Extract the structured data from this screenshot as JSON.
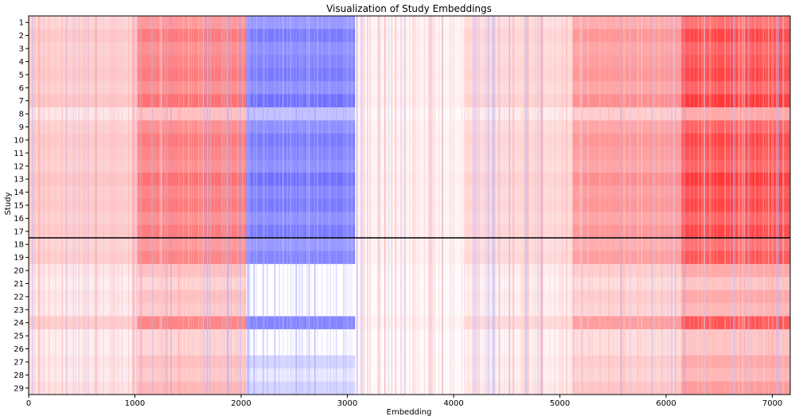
{
  "chart_data": {
    "type": "heatmap",
    "title": "Visualization of Study Embeddings",
    "xlabel": "Embedding",
    "ylabel": "Study",
    "xlim": [
      0,
      7168
    ],
    "x_ticks": [
      0,
      1000,
      2000,
      3000,
      4000,
      5000,
      6000,
      7000
    ],
    "y_categories": [
      "1",
      "2",
      "3",
      "4",
      "5",
      "6",
      "7",
      "8",
      "9",
      "10",
      "11",
      "12",
      "13",
      "14",
      "15",
      "16",
      "17",
      "18",
      "19",
      "20",
      "21",
      "22",
      "23",
      "24",
      "25",
      "26",
      "27",
      "28",
      "29"
    ],
    "separator_after_row": 17,
    "colormap": "bwr",
    "colors": {
      "positive": "#ff0000",
      "negative": "#0000ff",
      "zero": "#ffffff",
      "separator": "#000000"
    },
    "column_blocks": [
      {
        "start": 0,
        "end": 1024,
        "mean_value": 0.04
      },
      {
        "start": 1024,
        "end": 2048,
        "mean_value": 0.1
      },
      {
        "start": 2048,
        "end": 3072,
        "mean_value": -0.1
      },
      {
        "start": 3072,
        "end": 4096,
        "mean_value": 0.01
      },
      {
        "start": 4096,
        "end": 5120,
        "mean_value": 0.03
      },
      {
        "start": 5120,
        "end": 6144,
        "mean_value": 0.08
      },
      {
        "start": 6144,
        "end": 7168,
        "mean_value": 0.14
      }
    ],
    "row_intensity": [
      1.0,
      1.3,
      1.1,
      1.2,
      1.3,
      1.1,
      1.4,
      0.6,
      1.1,
      1.3,
      1.2,
      1.1,
      1.4,
      1.2,
      1.3,
      1.1,
      1.3,
      1.0,
      1.2,
      0.6,
      0.4,
      0.6,
      0.5,
      1.2,
      0.4,
      0.4,
      0.6,
      0.5,
      0.7
    ],
    "row_block_overrides": [
      {
        "row": 20,
        "block": 2,
        "mean_value": 0.0
      },
      {
        "row": 21,
        "block": 2,
        "mean_value": 0.0
      },
      {
        "row": 22,
        "block": 2,
        "mean_value": 0.0
      },
      {
        "row": 23,
        "block": 2,
        "mean_value": 0.0
      },
      {
        "row": 25,
        "block": 2,
        "mean_value": 0.0
      },
      {
        "row": 26,
        "block": 2,
        "mean_value": 0.0
      },
      {
        "row": 27,
        "block": 2,
        "mean_value": -0.04
      },
      {
        "row": 28,
        "block": 2,
        "mean_value": -0.02
      },
      {
        "row": 29,
        "block": 2,
        "mean_value": -0.04
      }
    ]
  }
}
